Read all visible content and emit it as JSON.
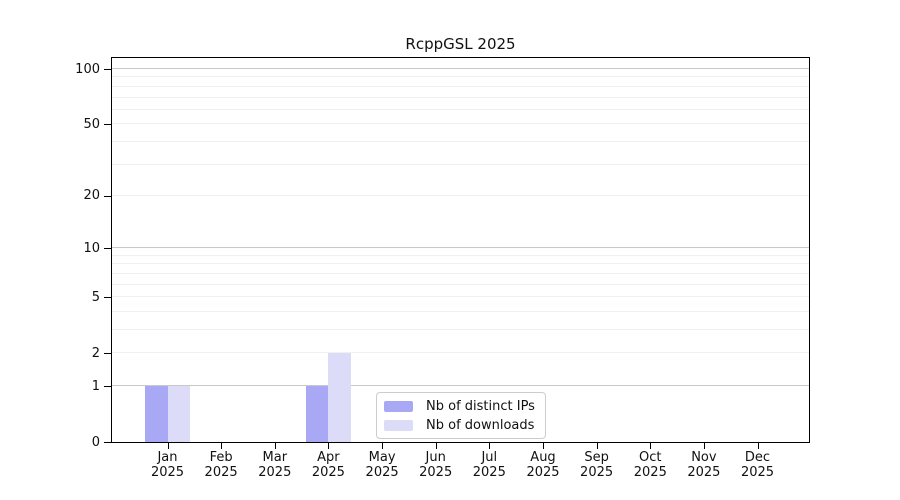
{
  "title": "RcppGSL 2025",
  "colors": {
    "distinct_ips_bar": "#a8a8f4",
    "downloads_bar": "#dcdcf9",
    "major_gridline": "#c8c8c8",
    "minor_gridline": "#f0f0f0",
    "axis": "#000000",
    "legend_border": "#cccccc",
    "text": "#111111"
  },
  "legend": {
    "items": [
      {
        "label": "Nb of distinct IPs",
        "color": "#a8a8f4"
      },
      {
        "label": "Nb of downloads",
        "color": "#dcdcf9"
      }
    ]
  },
  "chart_data": {
    "type": "bar",
    "title": "RcppGSL 2025",
    "xlabel": "",
    "ylabel": "",
    "categories": [
      {
        "month": "Jan",
        "year": "2025"
      },
      {
        "month": "Feb",
        "year": "2025"
      },
      {
        "month": "Mar",
        "year": "2025"
      },
      {
        "month": "Apr",
        "year": "2025"
      },
      {
        "month": "May",
        "year": "2025"
      },
      {
        "month": "Jun",
        "year": "2025"
      },
      {
        "month": "Jul",
        "year": "2025"
      },
      {
        "month": "Aug",
        "year": "2025"
      },
      {
        "month": "Sep",
        "year": "2025"
      },
      {
        "month": "Oct",
        "year": "2025"
      },
      {
        "month": "Nov",
        "year": "2025"
      },
      {
        "month": "Dec",
        "year": "2025"
      }
    ],
    "series": [
      {
        "name": "Nb of distinct IPs",
        "color": "#a8a8f4",
        "values": [
          1,
          0,
          0,
          1,
          0,
          0,
          0,
          0,
          0,
          0,
          0,
          0
        ]
      },
      {
        "name": "Nb of downloads",
        "color": "#dcdcf9",
        "values": [
          1,
          0,
          0,
          2,
          0,
          0,
          0,
          0,
          0,
          0,
          0,
          0
        ]
      }
    ],
    "y_scale": "log1p",
    "y_axis_max": 100,
    "y_tick_values": [
      0,
      1,
      2,
      5,
      10,
      20,
      50,
      100
    ],
    "y_gridlines_major": [
      1,
      10,
      100
    ],
    "y_gridlines_minor": [
      2,
      3,
      4,
      5,
      6,
      7,
      8,
      9,
      20,
      30,
      40,
      50,
      60,
      70,
      80,
      90
    ],
    "grid": true,
    "legend_position": "bottom-center-inside"
  }
}
